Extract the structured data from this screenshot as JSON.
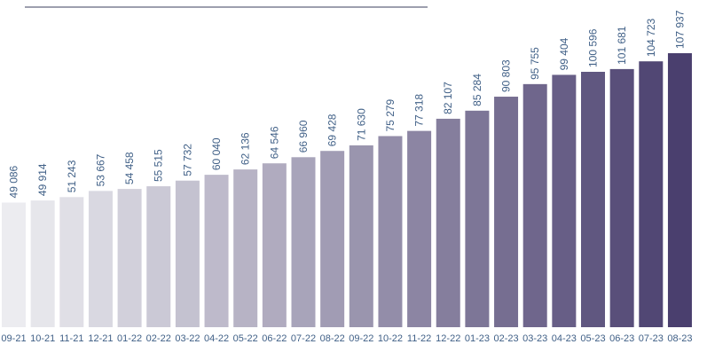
{
  "chart_data": {
    "type": "bar",
    "title": "",
    "xlabel": "",
    "ylabel": "",
    "categories": [
      "09-21",
      "10-21",
      "11-21",
      "12-21",
      "01-22",
      "02-22",
      "03-22",
      "04-22",
      "05-22",
      "06-22",
      "07-22",
      "08-22",
      "09-22",
      "10-22",
      "11-22",
      "12-22",
      "01-23",
      "02-23",
      "03-23",
      "04-23",
      "05-23",
      "06-23",
      "07-23",
      "08-23"
    ],
    "values": [
      49086,
      49914,
      51243,
      53667,
      54458,
      55515,
      57732,
      60040,
      62136,
      64546,
      66960,
      69428,
      71630,
      75279,
      77318,
      82107,
      85284,
      90803,
      95755,
      99404,
      100596,
      101681,
      104723,
      107937
    ],
    "value_labels": [
      "49 086",
      "49 914",
      "51 243",
      "53 667",
      "54 458",
      "55 515",
      "57 732",
      "60 040",
      "62 136",
      "64 546",
      "66 960",
      "69 428",
      "71 630",
      "75 279",
      "77 318",
      "82 107",
      "85 284",
      "90 803",
      "95 755",
      "99 404",
      "100 596",
      "101 681",
      "104 723",
      "107 937"
    ],
    "ylim": [
      0,
      110000
    ],
    "grid": false,
    "legend": "none",
    "bar_color_start": "#ececf0",
    "bar_color_end": "#4a3f6e",
    "label_color": "#3f5f86",
    "header_line_color": "#3b3f5c"
  }
}
